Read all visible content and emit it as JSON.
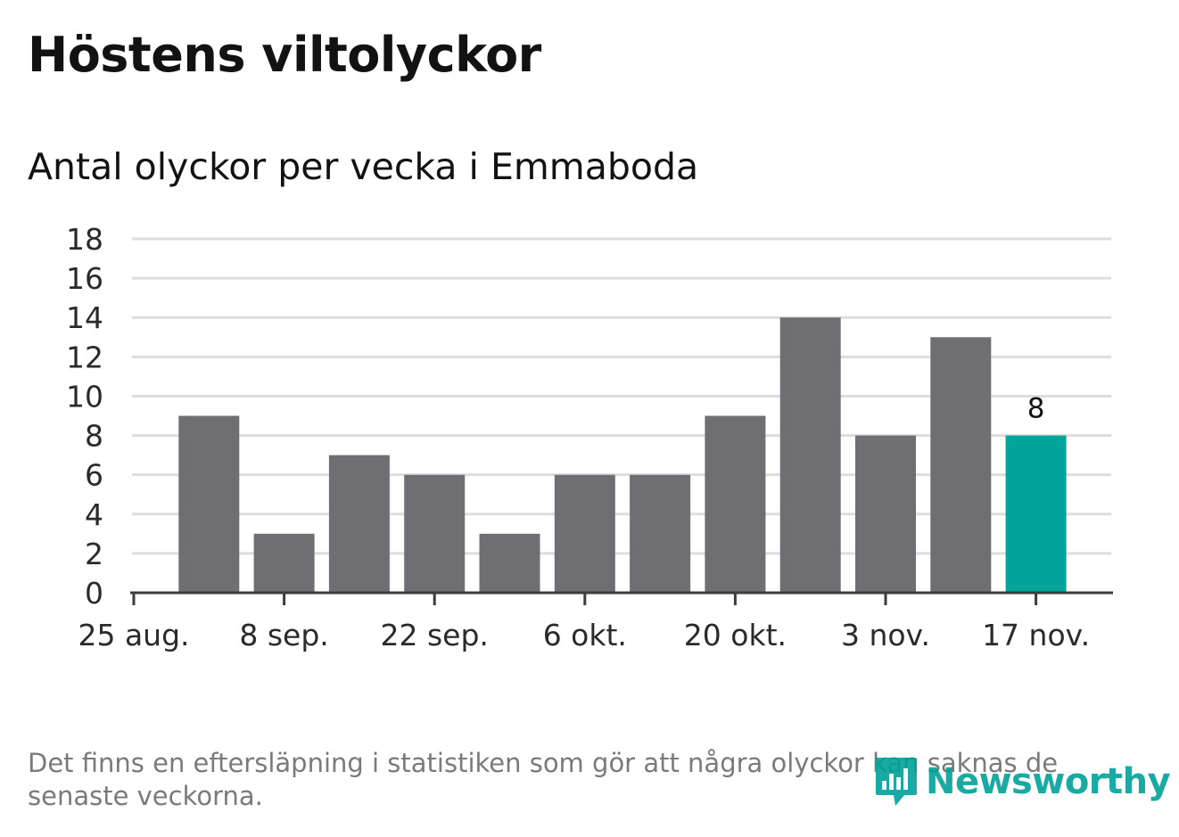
{
  "title": "Höstens viltolyckor",
  "subtitle": "Antal olyckor per vecka i Emmaboda",
  "footnote": "Det finns en eftersläpning i statistiken som gör att några olyckor kan saknas de senaste veckorna.",
  "brand": {
    "name": "Newsworthy",
    "icon": "newsworthy-chart-icon",
    "color": "#00a19a"
  },
  "chart_data": {
    "type": "bar",
    "x_ticks": [
      "25 aug.",
      "8 sep.",
      "22 sep.",
      "6 okt.",
      "20 okt.",
      "3 nov.",
      "17 nov."
    ],
    "values": [
      9,
      3,
      7,
      6,
      3,
      6,
      6,
      9,
      14,
      8,
      13,
      8
    ],
    "highlight_index": 11,
    "highlight_label": "8",
    "y_ticks": [
      0,
      2,
      4,
      6,
      8,
      10,
      12,
      14,
      16,
      18
    ],
    "ylim": [
      0,
      18
    ],
    "grid": true,
    "colors": {
      "bar": "#6f6e73",
      "highlight": "#00a49a",
      "grid": "#dddddd",
      "axis": "#3c3c3c"
    }
  }
}
